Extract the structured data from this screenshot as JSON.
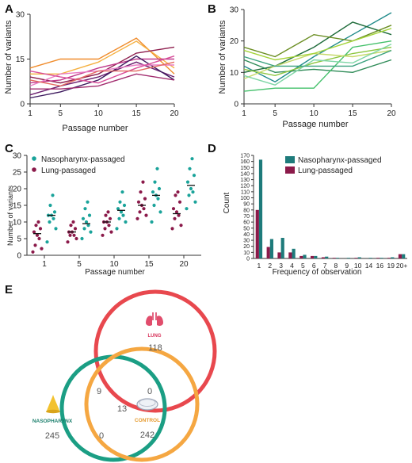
{
  "panels": [
    {
      "id": "A",
      "label": "A"
    },
    {
      "id": "B",
      "label": "B"
    },
    {
      "id": "C",
      "label": "C"
    },
    {
      "id": "D",
      "label": "D"
    },
    {
      "id": "E",
      "label": "E"
    }
  ],
  "chart_data": [
    {
      "panel": "A",
      "type": "line",
      "xlabel": "Passage number",
      "ylabel": "Number of variants",
      "x": [
        1,
        5,
        10,
        15,
        20
      ],
      "xlim": [
        1,
        20
      ],
      "ylim": [
        0,
        30
      ],
      "yticks": [
        0,
        15,
        30
      ],
      "series": [
        {
          "color": "#f08c2c",
          "values": [
            12,
            15,
            15,
            22,
            10
          ]
        },
        {
          "color": "#f5b041",
          "values": [
            10,
            10,
            14,
            21,
            12
          ]
        },
        {
          "color": "#8e1f4e",
          "values": [
            9,
            7,
            10,
            17,
            19
          ]
        },
        {
          "color": "#c0398b",
          "values": [
            7,
            8,
            12,
            15,
            15
          ]
        },
        {
          "color": "#6b2070",
          "values": [
            3,
            6,
            9,
            14,
            9
          ]
        },
        {
          "color": "#3d1a5e",
          "values": [
            2,
            4,
            8,
            16,
            8
          ]
        },
        {
          "color": "#e87cc4",
          "values": [
            6,
            10,
            11,
            13,
            13
          ]
        },
        {
          "color": "#d94f9a",
          "values": [
            11,
            9,
            7,
            12,
            16
          ]
        },
        {
          "color": "#a22d6f",
          "values": [
            5,
            5,
            6,
            10,
            8
          ]
        },
        {
          "color": "#e36a5f",
          "values": [
            8,
            6,
            11,
            11,
            14
          ]
        }
      ]
    },
    {
      "panel": "B",
      "type": "line",
      "xlabel": "Passage number",
      "ylabel": "Number of variants",
      "x": [
        1,
        5,
        10,
        15,
        20
      ],
      "xlim": [
        1,
        20
      ],
      "ylim": [
        0,
        30
      ],
      "yticks": [
        0,
        10,
        20,
        30
      ],
      "series": [
        {
          "color": "#1f8a8a",
          "values": [
            12,
            7,
            15,
            22,
            29
          ]
        },
        {
          "color": "#1e6b3a",
          "values": [
            10,
            12,
            18,
            26,
            22
          ]
        },
        {
          "color": "#6b8e23",
          "values": [
            18,
            15,
            22,
            20,
            25
          ]
        },
        {
          "color": "#2e8b57",
          "values": [
            14,
            10,
            11,
            10,
            14
          ]
        },
        {
          "color": "#8dc63f",
          "values": [
            11,
            9,
            13,
            16,
            18
          ]
        },
        {
          "color": "#43c06a",
          "values": [
            4,
            5,
            5,
            18,
            20
          ]
        },
        {
          "color": "#c6d96a",
          "values": [
            8,
            12,
            16,
            15,
            17
          ]
        },
        {
          "color": "#7fd6a6",
          "values": [
            9,
            6,
            14,
            13,
            19
          ]
        },
        {
          "color": "#3aa17e",
          "values": [
            15,
            12,
            12,
            12,
            17
          ]
        },
        {
          "color": "#a5d43a",
          "values": [
            17,
            14,
            16,
            20,
            24
          ]
        }
      ]
    },
    {
      "panel": "C",
      "type": "scatter",
      "xlabel": "Passage number",
      "ylabel": "Number of variants",
      "categories": [
        "1",
        "5",
        "10",
        "15",
        "20"
      ],
      "ylim": [
        0,
        30
      ],
      "yticks": [
        0,
        5,
        10,
        15,
        20,
        25,
        30
      ],
      "legend": "top-left",
      "series": [
        {
          "name": "Nasopharynx-passaged",
          "color": "#1aa39a",
          "values": [
            [
              4,
              8,
              10,
              11,
              12,
              12,
              13,
              15,
              18
            ],
            [
              5,
              7,
              8,
              9,
              10,
              11,
              12,
              14,
              16
            ],
            [
              8,
              10,
              11,
              12,
              13,
              14,
              15,
              16,
              19
            ],
            [
              10,
              13,
              15,
              17,
              18,
              19,
              20,
              22,
              26
            ],
            [
              14,
              16,
              18,
              19,
              20,
              22,
              24,
              26,
              29
            ]
          ],
          "means": [
            12,
            9.5,
            13.5,
            18,
            21
          ]
        },
        {
          "name": "Lung-passaged",
          "color": "#8b1a4a",
          "values": [
            [
              1,
              2,
              3,
              5,
              6,
              7,
              8,
              9,
              10
            ],
            [
              4,
              5,
              6,
              6,
              7,
              7,
              8,
              9,
              10
            ],
            [
              6,
              7,
              8,
              9,
              10,
              10,
              11,
              12,
              13
            ],
            [
              11,
              12,
              13,
              14,
              15,
              16,
              17,
              19,
              22
            ],
            [
              8,
              9,
              11,
              12,
              13,
              14,
              16,
              18,
              19
            ]
          ],
          "means": [
            6.5,
            7,
            10,
            15,
            12.5
          ]
        }
      ]
    },
    {
      "panel": "D",
      "type": "bar",
      "xlabel": "Frequency of observation",
      "ylabel": "Count",
      "categories": [
        "1",
        "2",
        "3",
        "4",
        "5",
        "6",
        "7",
        "8",
        "9",
        "10",
        "14",
        "16",
        "19",
        "20+"
      ],
      "ylim": [
        0,
        170
      ],
      "yticks": [
        0,
        10,
        20,
        30,
        40,
        50,
        60,
        70,
        80,
        90,
        100,
        110,
        120,
        130,
        140,
        150,
        160,
        170
      ],
      "legend": "top-right",
      "series": [
        {
          "name": "Nasopharynx-passaged",
          "color": "#1e7b7b",
          "values": [
            163,
            32,
            34,
            16,
            6,
            4,
            3,
            1,
            1,
            2,
            1,
            1,
            2,
            7
          ]
        },
        {
          "name": "Lung-passaged",
          "color": "#8b1a4a",
          "values": [
            80,
            19,
            10,
            10,
            4,
            4,
            2,
            1,
            0,
            1,
            0,
            1,
            1,
            7
          ]
        }
      ]
    }
  ],
  "venn": {
    "sets": [
      {
        "label": "LUNG",
        "color": "#e8484e",
        "count": "118"
      },
      {
        "label": "NASOPHARYNX",
        "color": "#1b9e84",
        "count": "245"
      },
      {
        "label": "CONTROL",
        "color": "#f5a742",
        "count": "242"
      }
    ],
    "overlaps": {
      "lung_naso": "9",
      "lung_control": "0",
      "naso_control": "0",
      "all": "13"
    }
  }
}
